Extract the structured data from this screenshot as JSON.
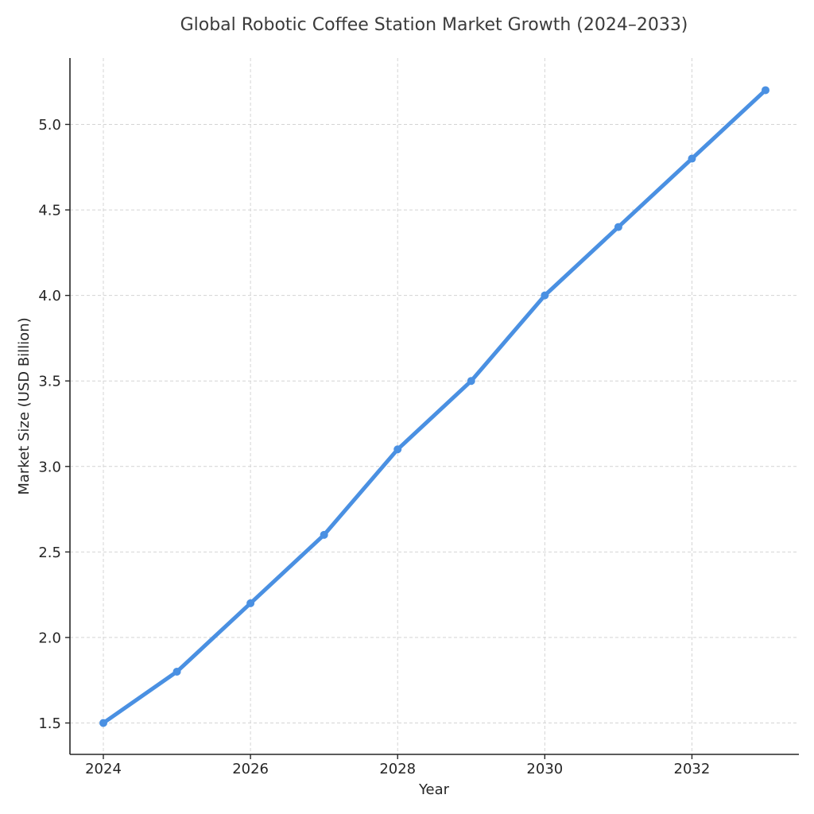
{
  "chart_data": {
    "type": "line",
    "title": "Global Robotic Coffee Station Market Growth (2024–2033)",
    "xlabel": "Year",
    "ylabel": "Market Size (USD Billion)",
    "x": [
      2024,
      2025,
      2026,
      2027,
      2028,
      2029,
      2030,
      2031,
      2032,
      2033
    ],
    "series": [
      {
        "name": "Market Size",
        "values": [
          1.5,
          1.8,
          2.2,
          2.6,
          3.1,
          3.5,
          4.0,
          4.4,
          4.8,
          5.2
        ],
        "color": "#4a90e2",
        "marker": "circle"
      }
    ],
    "xticks": [
      2024,
      2026,
      2028,
      2030,
      2032
    ],
    "xtick_labels": [
      "2024",
      "2026",
      "2028",
      "2030",
      "2032"
    ],
    "yticks": [
      1.5,
      2.0,
      2.5,
      3.0,
      3.5,
      4.0,
      4.5,
      5.0
    ],
    "ytick_labels": [
      "1.5",
      "2.0",
      "2.5",
      "3.0",
      "3.5",
      "4.0",
      "4.5",
      "5.0"
    ],
    "xlim": [
      2023.78,
      2034.0
    ],
    "ylim": [
      1.315,
      5.42
    ],
    "grid": true,
    "legend": null
  }
}
